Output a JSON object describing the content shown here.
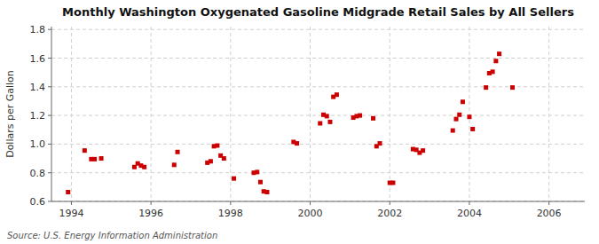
{
  "chart_data": {
    "type": "scatter",
    "title": "Monthly Washington Oxygenated Gasoline Midgrade Retail Sales by All Sellers",
    "y_label": "Dollars per Gallon",
    "annotations": [
      "Source: U.S. Energy Information Administration"
    ],
    "xlim": [
      1993.5,
      2006.9
    ],
    "ylim": [
      0.6,
      1.82
    ],
    "xticks": [
      1994,
      1996,
      1998,
      2000,
      2002,
      2004,
      2006
    ],
    "yticks": [
      0.6,
      0.8,
      {
        "value": 1.0,
        "label": "1.0"
      },
      1.2,
      1.4,
      1.6,
      1.8
    ],
    "grid": true,
    "color": "#cc0000",
    "marker": "square",
    "x": [
      1993.917,
      1994.333,
      1994.5,
      1994.583,
      1994.75,
      1995.583,
      1995.667,
      1995.75,
      1995.833,
      1996.583,
      1996.667,
      1997.417,
      1997.5,
      1997.583,
      1997.667,
      1997.75,
      1997.833,
      1998.083,
      1998.583,
      1998.667,
      1998.75,
      1998.833,
      1998.917,
      1999.583,
      1999.667,
      2000.25,
      2000.333,
      2000.417,
      2000.5,
      2000.583,
      2000.667,
      2001.083,
      2001.167,
      2001.25,
      2001.583,
      2001.667,
      2001.75,
      2002.0,
      2002.083,
      2002.583,
      2002.667,
      2002.75,
      2002.833,
      2003.583,
      2003.667,
      2003.75,
      2003.833,
      2004.0,
      2004.083,
      2004.417,
      2004.5,
      2004.583,
      2004.667,
      2004.75,
      2005.083
    ],
    "values": [
      0.665,
      0.955,
      0.895,
      0.895,
      0.9,
      0.84,
      0.865,
      0.85,
      0.84,
      0.855,
      0.945,
      0.87,
      0.88,
      0.985,
      0.99,
      0.92,
      0.9,
      0.76,
      0.8,
      0.805,
      0.735,
      0.67,
      0.665,
      1.015,
      1.005,
      1.145,
      1.205,
      1.195,
      1.155,
      1.33,
      1.345,
      1.185,
      1.195,
      1.2,
      1.18,
      0.985,
      1.005,
      0.73,
      0.73,
      0.965,
      0.96,
      0.94,
      0.955,
      1.095,
      1.175,
      1.205,
      1.295,
      1.19,
      1.105,
      1.395,
      1.495,
      1.505,
      1.58,
      1.63,
      1.395
    ]
  }
}
